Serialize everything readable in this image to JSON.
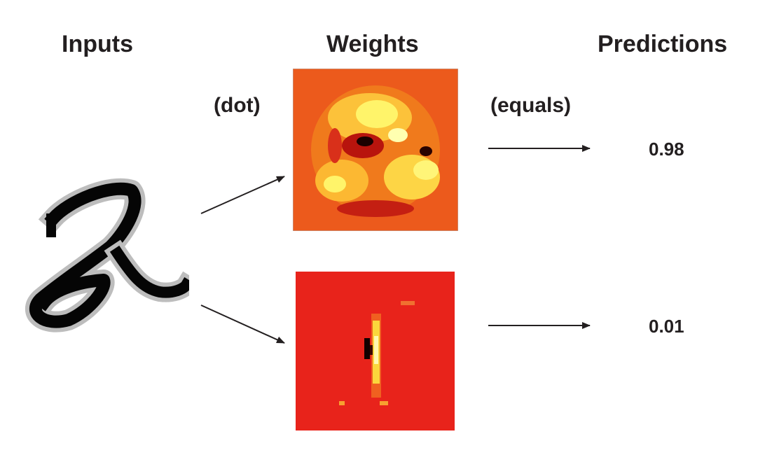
{
  "headings": {
    "inputs": "Inputs",
    "weights": "Weights",
    "predictions": "Predictions"
  },
  "operators": {
    "dot": "(dot)",
    "equals": "(equals)"
  },
  "predictions": [
    "0.98",
    "0.01"
  ],
  "colors": {
    "text": "#231f20",
    "heatmap_background": "#e8231b",
    "heatmap_hot": "#fff35a",
    "heatmap_cold": "#000000"
  },
  "icons": {
    "input": "handwritten-digit-image",
    "weights_top": "weight-heatmap-image",
    "weights_bottom": "weight-heatmap-image"
  }
}
